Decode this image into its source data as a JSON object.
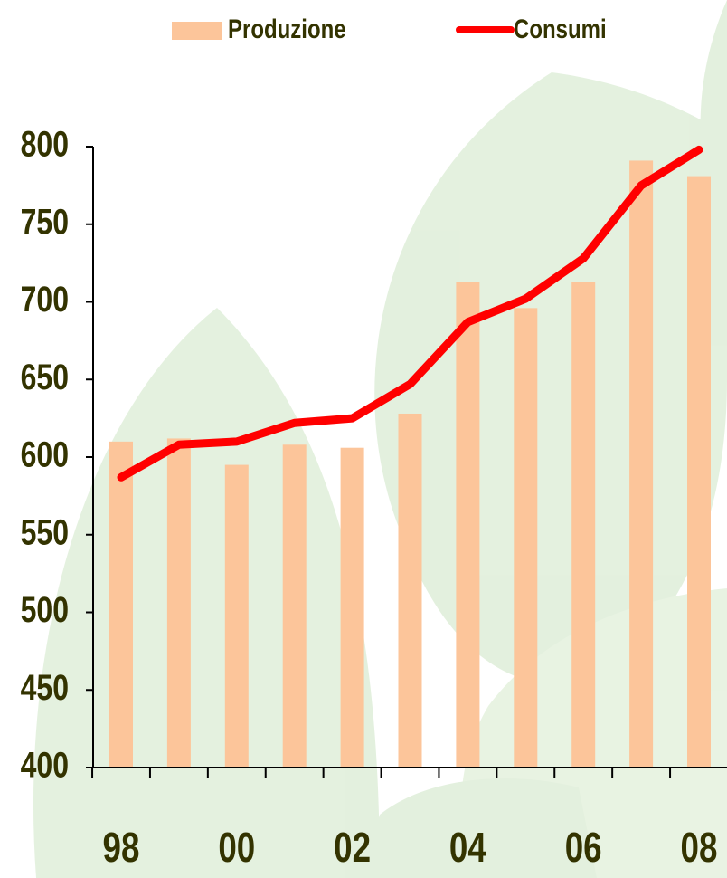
{
  "chart_data": {
    "type": "bar-line",
    "categories": [
      "98",
      null,
      "00",
      null,
      "02",
      null,
      "04",
      null,
      "06",
      null,
      "08"
    ],
    "series": [
      {
        "name": "Produzione",
        "type": "bar",
        "color": "#fcc59a",
        "values": [
          610,
          612,
          595,
          608,
          606,
          628,
          713,
          696,
          713,
          791,
          781
        ]
      },
      {
        "name": "Consumi",
        "type": "line",
        "color": "#ff0000",
        "values": [
          587,
          608,
          610,
          622,
          625,
          647,
          687,
          702,
          728,
          775,
          798
        ]
      }
    ],
    "ylim": [
      400,
      800
    ],
    "yticks": [
      400,
      450,
      500,
      550,
      600,
      650,
      700,
      750,
      800
    ],
    "grid": false,
    "legend": "top"
  }
}
